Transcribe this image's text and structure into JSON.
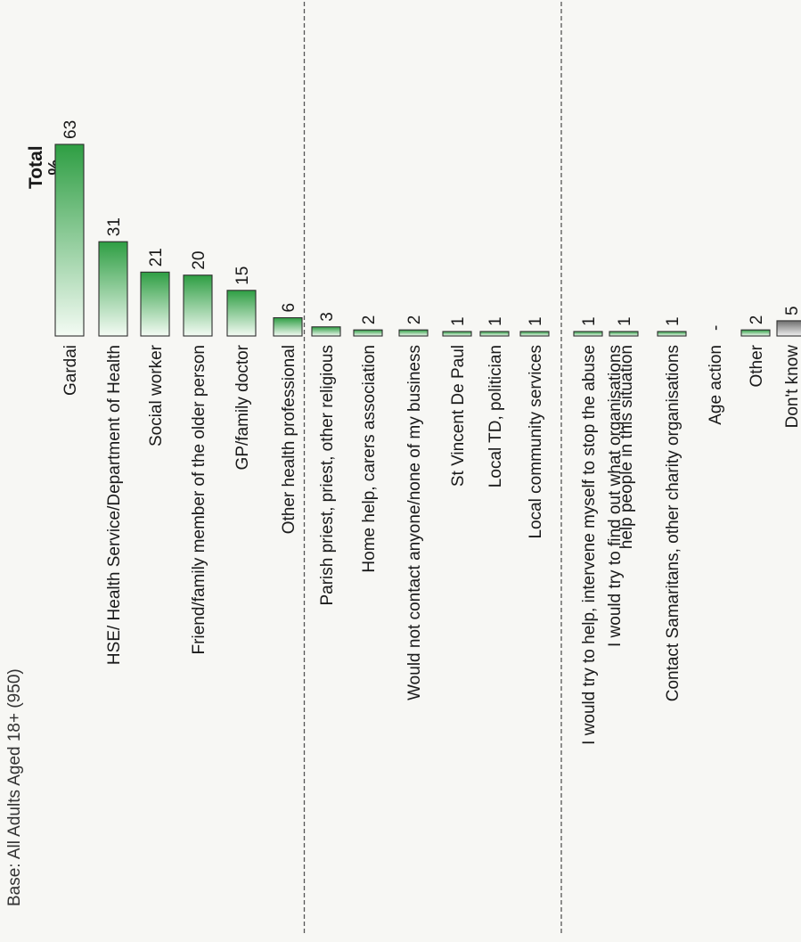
{
  "base": "Base: All Adults Aged 18+ (950)",
  "header": {
    "title": "Total",
    "unit": "%"
  },
  "chart_data": {
    "type": "bar",
    "orientation": "horizontal",
    "title": "Total",
    "unit": "%",
    "categories": [
      [
        "Gardai"
      ],
      [
        "HSE/ Health Service/Department of Health"
      ],
      [
        "Social worker"
      ],
      [
        "Friend/family member of the older person"
      ],
      [
        "GP/family doctor"
      ],
      [
        "Other health professional"
      ],
      [
        "Parish priest, priest, other religious"
      ],
      [
        "Home help, carers association"
      ],
      [
        "Would not contact anyone/none of my business"
      ],
      [
        "St Vincent De Paul"
      ],
      [
        "Local TD, politician"
      ],
      [
        "Local community services"
      ],
      [
        "I would try to help, intervene myself to stop the abuse"
      ],
      [
        "I would try to find out what organisations",
        "help people in this situation"
      ],
      [
        "Contact Samaritans, other charity organisations"
      ],
      [
        "Age action"
      ],
      [
        "Other"
      ],
      [
        "Don't know"
      ]
    ],
    "values": [
      63,
      31,
      21,
      20,
      15,
      6,
      3,
      2,
      2,
      1,
      1,
      1,
      1,
      1,
      1,
      null,
      2,
      5
    ],
    "value_labels": [
      "63",
      "31",
      "21",
      "20",
      "15",
      "6",
      "3",
      "2",
      "2",
      "1",
      "1",
      "1",
      "1",
      "1",
      "1",
      "-",
      "2",
      "5"
    ],
    "group_breaks_after": [
      5,
      11
    ],
    "colors": {
      "green": "#2e9e43",
      "green_light": "#e9f5ea",
      "grey": "#6e6e6e",
      "grey_light": "#e8e8e8"
    }
  }
}
